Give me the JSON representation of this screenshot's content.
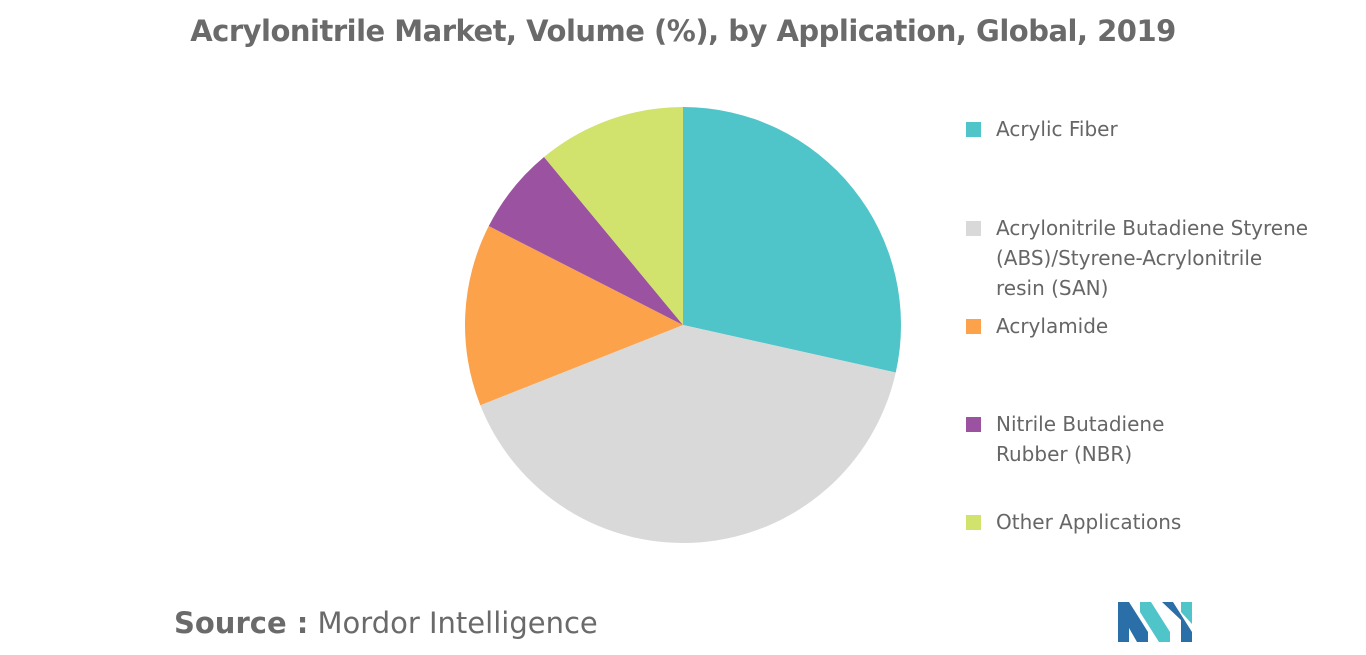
{
  "header": {
    "title": "Acrylonitrile Market, Volume (%), by Application, Global, 2019"
  },
  "chart_data": {
    "type": "pie",
    "title": "Acrylonitrile Market, Volume (%), by Application, Global, 2019",
    "legend_position": "right",
    "slices": [
      {
        "label": "Acrylic Fiber",
        "value": 28.5,
        "color": "#4fc4c9"
      },
      {
        "label": "Acrylonitrile Butadiene Styrene (ABS)/Styrene-Acrylonitrile resin (SAN)",
        "value": 40.5,
        "color": "#d9d9d9"
      },
      {
        "label": "Acrylamide",
        "value": 13.5,
        "color": "#fba24b"
      },
      {
        "label": "Nitrile Butadiene Rubber (NBR)",
        "value": 6.5,
        "color": "#9b52a0"
      },
      {
        "label": "Other Applications",
        "value": 11.0,
        "color": "#d1e26d"
      }
    ]
  },
  "legend": {
    "items": [
      {
        "label": "Acrylic Fiber",
        "color": "#4fc4c9"
      },
      {
        "label": "Acrylonitrile Butadiene Styrene\n(ABS)/Styrene-Acrylonitrile\nresin (SAN)",
        "color": "#d9d9d9"
      },
      {
        "label": "Acrylamide",
        "color": "#fba24b"
      },
      {
        "label": "Nitrile Butadiene\nRubber (NBR)",
        "color": "#9b52a0"
      },
      {
        "label": "Other Applications",
        "color": "#d1e26d"
      }
    ]
  },
  "footer": {
    "source_key": "Source :",
    "source_value": "Mordor Intelligence"
  },
  "logo": {
    "icon": "mordor-intelligence-logo-icon",
    "colors": [
      "#2a6fa8",
      "#4fc4c9"
    ]
  }
}
